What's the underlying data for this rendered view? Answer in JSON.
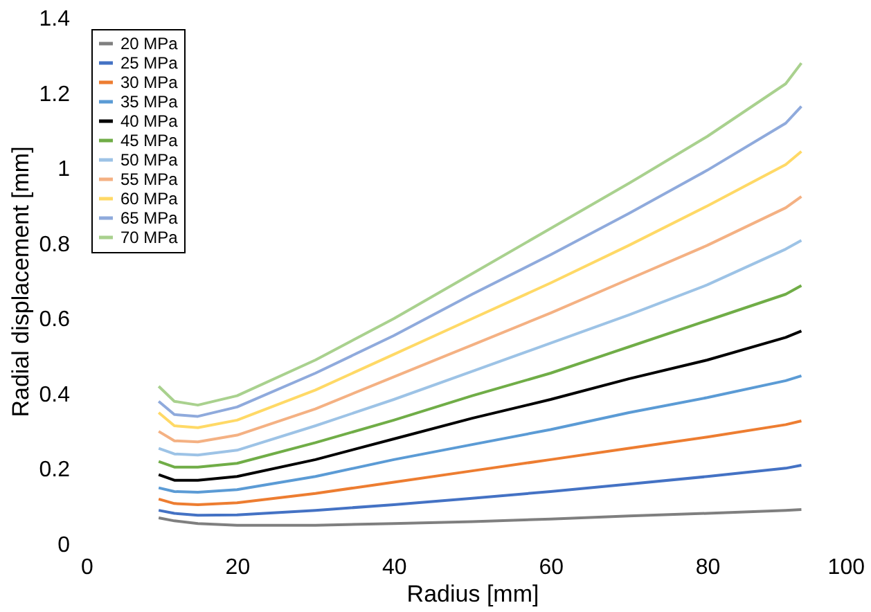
{
  "chart_data": {
    "type": "line",
    "xlabel": "Radius [mm]",
    "ylabel": "Radial displacement [mm]",
    "x": [
      10,
      12,
      15,
      20,
      30,
      40,
      50,
      60,
      70,
      80,
      90,
      92
    ],
    "xlim": [
      0,
      100
    ],
    "xticks": [
      0,
      20,
      40,
      60,
      80,
      100
    ],
    "ylim": [
      0,
      1.4
    ],
    "yticks": [
      0,
      0.2,
      0.4,
      0.6,
      0.8,
      1,
      1.2,
      1.4
    ],
    "grid": false,
    "legend": "top left",
    "marker": "none",
    "line_style": "solid",
    "series": [
      {
        "name": "20 MPa",
        "color": "#7f7f7f",
        "values": [
          0.07,
          0.062,
          0.055,
          0.05,
          0.05,
          0.055,
          0.06,
          0.067,
          0.075,
          0.082,
          0.09,
          0.092
        ]
      },
      {
        "name": "25 MPa",
        "color": "#4472c4",
        "values": [
          0.09,
          0.082,
          0.077,
          0.078,
          0.09,
          0.105,
          0.122,
          0.14,
          0.16,
          0.18,
          0.202,
          0.21
        ]
      },
      {
        "name": "30 MPa",
        "color": "#ed7d31",
        "values": [
          0.12,
          0.108,
          0.105,
          0.11,
          0.135,
          0.165,
          0.195,
          0.225,
          0.255,
          0.285,
          0.318,
          0.328
        ]
      },
      {
        "name": "35 MPa",
        "color": "#5b9bd5",
        "values": [
          0.15,
          0.14,
          0.138,
          0.145,
          0.18,
          0.225,
          0.265,
          0.305,
          0.35,
          0.39,
          0.435,
          0.448
        ]
      },
      {
        "name": "40 MPa",
        "color": "#000000",
        "values": [
          0.185,
          0.17,
          0.17,
          0.18,
          0.225,
          0.28,
          0.335,
          0.385,
          0.44,
          0.49,
          0.55,
          0.567
        ]
      },
      {
        "name": "45 MPa",
        "color": "#70ad47",
        "values": [
          0.22,
          0.205,
          0.205,
          0.215,
          0.27,
          0.33,
          0.395,
          0.455,
          0.525,
          0.595,
          0.665,
          0.688
        ]
      },
      {
        "name": "50 MPa",
        "color": "#9dc3e6",
        "values": [
          0.255,
          0.24,
          0.237,
          0.25,
          0.315,
          0.385,
          0.46,
          0.535,
          0.61,
          0.69,
          0.785,
          0.808
        ]
      },
      {
        "name": "55 MPa",
        "color": "#f4b183",
        "values": [
          0.3,
          0.275,
          0.272,
          0.29,
          0.36,
          0.445,
          0.53,
          0.615,
          0.705,
          0.795,
          0.895,
          0.925
        ]
      },
      {
        "name": "60 MPa",
        "color": "#ffd966",
        "values": [
          0.35,
          0.315,
          0.31,
          0.33,
          0.41,
          0.505,
          0.6,
          0.695,
          0.795,
          0.9,
          1.01,
          1.045
        ]
      },
      {
        "name": "65 MPa",
        "color": "#8faadc",
        "values": [
          0.38,
          0.345,
          0.34,
          0.365,
          0.455,
          0.555,
          0.665,
          0.77,
          0.88,
          0.995,
          1.12,
          1.165
        ]
      },
      {
        "name": "70 MPa",
        "color": "#a9d18e",
        "values": [
          0.42,
          0.38,
          0.37,
          0.395,
          0.49,
          0.6,
          0.72,
          0.84,
          0.96,
          1.085,
          1.225,
          1.28
        ]
      }
    ]
  }
}
